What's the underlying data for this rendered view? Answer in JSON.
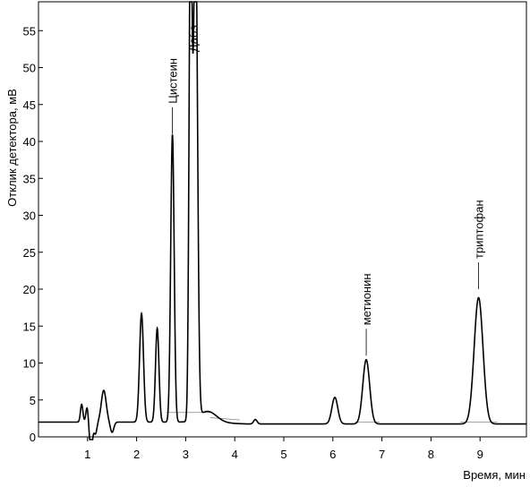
{
  "chart_data": {
    "type": "line",
    "title": "",
    "xlabel": "Время, мин",
    "ylabel": "Отклик детектора, мВ",
    "xlim": [
      0,
      9.9
    ],
    "ylim": [
      0,
      57
    ],
    "x_ticks": [
      1,
      2,
      3,
      4,
      5,
      6,
      7,
      8,
      9
    ],
    "y_ticks": [
      0,
      5,
      10,
      15,
      20,
      25,
      30,
      35,
      40,
      45,
      50,
      55
    ],
    "grid": false,
    "legend": "none",
    "line_color": "#000000",
    "baseline": 2.0,
    "series": [
      {
        "peaks": [
          {
            "t": 0.88,
            "h": 2.4,
            "w": 0.025
          },
          {
            "t": 0.99,
            "h": 2.0,
            "w": 0.025
          },
          {
            "t": 1.07,
            "h": -4.0,
            "w": 0.03
          },
          {
            "t": 1.16,
            "h": -1.6,
            "w": 0.03
          },
          {
            "t": 1.33,
            "h": 4.3,
            "w": 0.05
          },
          {
            "t": 1.5,
            "h": -1.4,
            "w": 0.035
          },
          {
            "t": 2.1,
            "h": 14.7,
            "w": 0.04
          },
          {
            "t": 2.42,
            "h": 12.7,
            "w": 0.035
          },
          {
            "t": 2.73,
            "h": 38.9,
            "w": 0.035
          },
          {
            "t": 3.1,
            "h": 70,
            "w": 0.03
          },
          {
            "t": 3.2,
            "h": 70,
            "w": 0.04
          },
          {
            "t": 3.45,
            "h": 1.5,
            "w": 0.18
          },
          {
            "t": 4.42,
            "h": 0.6,
            "w": 0.035
          },
          {
            "t": 6.04,
            "h": 3.6,
            "w": 0.06
          },
          {
            "t": 6.68,
            "h": 8.7,
            "w": 0.07
          },
          {
            "t": 8.97,
            "h": 17.1,
            "w": 0.09
          }
        ]
      }
    ],
    "annotations": [
      {
        "text": "Цистеин",
        "x": 2.73,
        "y": 41
      },
      {
        "text": "Дабs",
        "x": 3.15,
        "y": 57
      },
      {
        "text": "метионин",
        "x": 6.68,
        "y": 11
      },
      {
        "text": "триптофан",
        "x": 8.97,
        "y": 20
      }
    ]
  }
}
